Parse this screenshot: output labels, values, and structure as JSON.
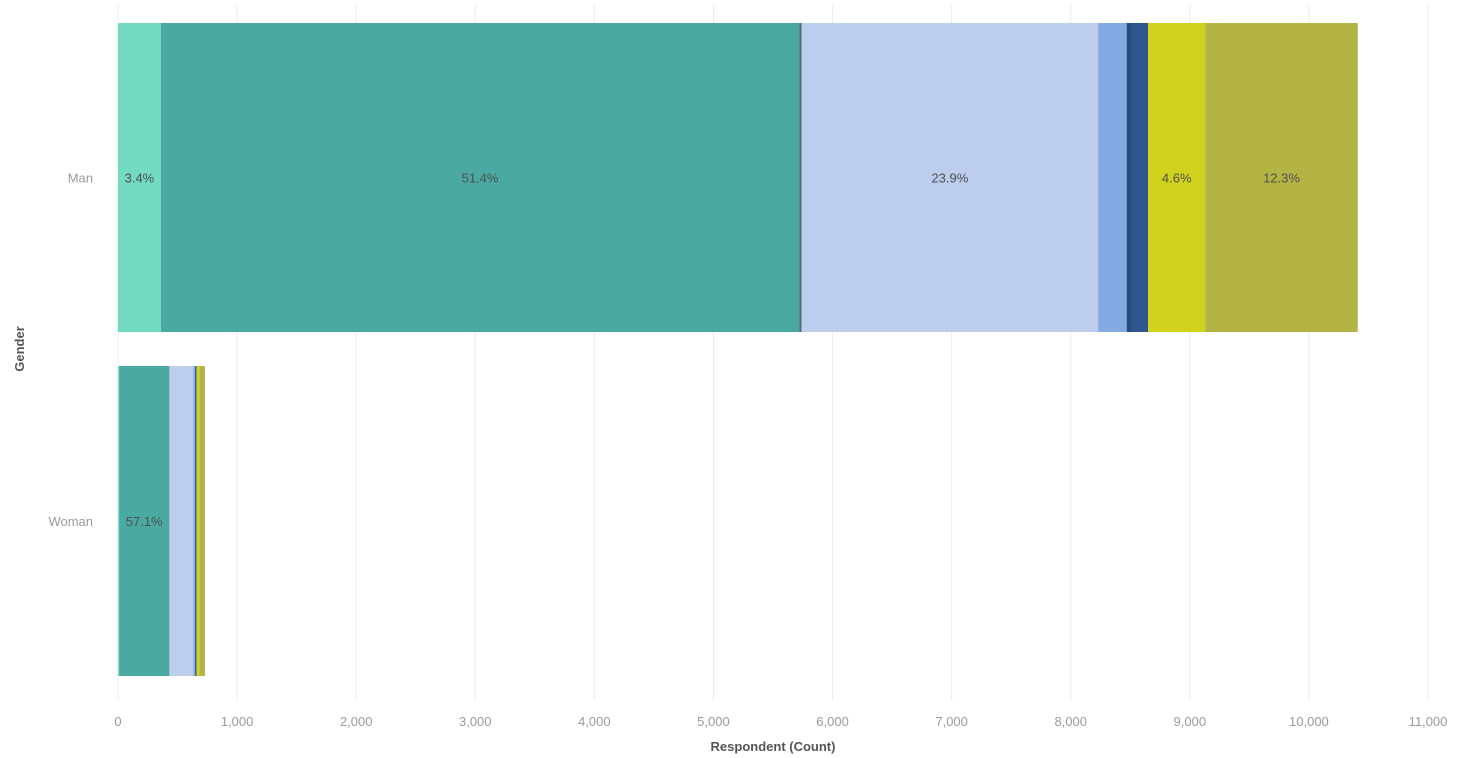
{
  "chart_data": {
    "type": "bar",
    "orientation": "horizontal",
    "stacked": true,
    "xlabel": "Respondent (Count)",
    "ylabel": "Gender",
    "xlim": [
      0,
      11000
    ],
    "x_ticks": [
      "0",
      "1,000",
      "2,000",
      "3,000",
      "4,000",
      "5,000",
      "6,000",
      "7,000",
      "8,000",
      "9,000",
      "10,000",
      "11,000"
    ],
    "x_tick_values": [
      0,
      1000,
      2000,
      3000,
      4000,
      5000,
      6000,
      7000,
      8000,
      9000,
      10000,
      11000
    ],
    "grid": true,
    "categories": [
      "Man",
      "Woman"
    ],
    "series": [
      {
        "color": "#74dbc3",
        "values": [
          360,
          10
        ],
        "labels": [
          "3.4%",
          ""
        ]
      },
      {
        "color": "#4aa9a1",
        "values": [
          5360,
          420
        ],
        "labels": [
          "51.4%",
          "57.1%"
        ]
      },
      {
        "color": "#4e6f77",
        "values": [
          20,
          2
        ],
        "labels": [
          "",
          ""
        ]
      },
      {
        "color": "#bccdee",
        "values": [
          2490,
          200
        ],
        "labels": [
          "23.9%",
          ""
        ]
      },
      {
        "color": "#85a9e3",
        "values": [
          240,
          15
        ],
        "labels": [
          "",
          ""
        ]
      },
      {
        "color": "#264a7c",
        "values": [
          40,
          3
        ],
        "labels": [
          "",
          ""
        ]
      },
      {
        "color": "#2f568f",
        "values": [
          140,
          10
        ],
        "labels": [
          "",
          ""
        ]
      },
      {
        "color": "#d0d21c",
        "values": [
          480,
          25
        ],
        "labels": [
          "4.6%",
          ""
        ]
      },
      {
        "color": "#b3b443",
        "values": [
          1280,
          45
        ],
        "labels": [
          "12.3%",
          ""
        ]
      }
    ]
  }
}
